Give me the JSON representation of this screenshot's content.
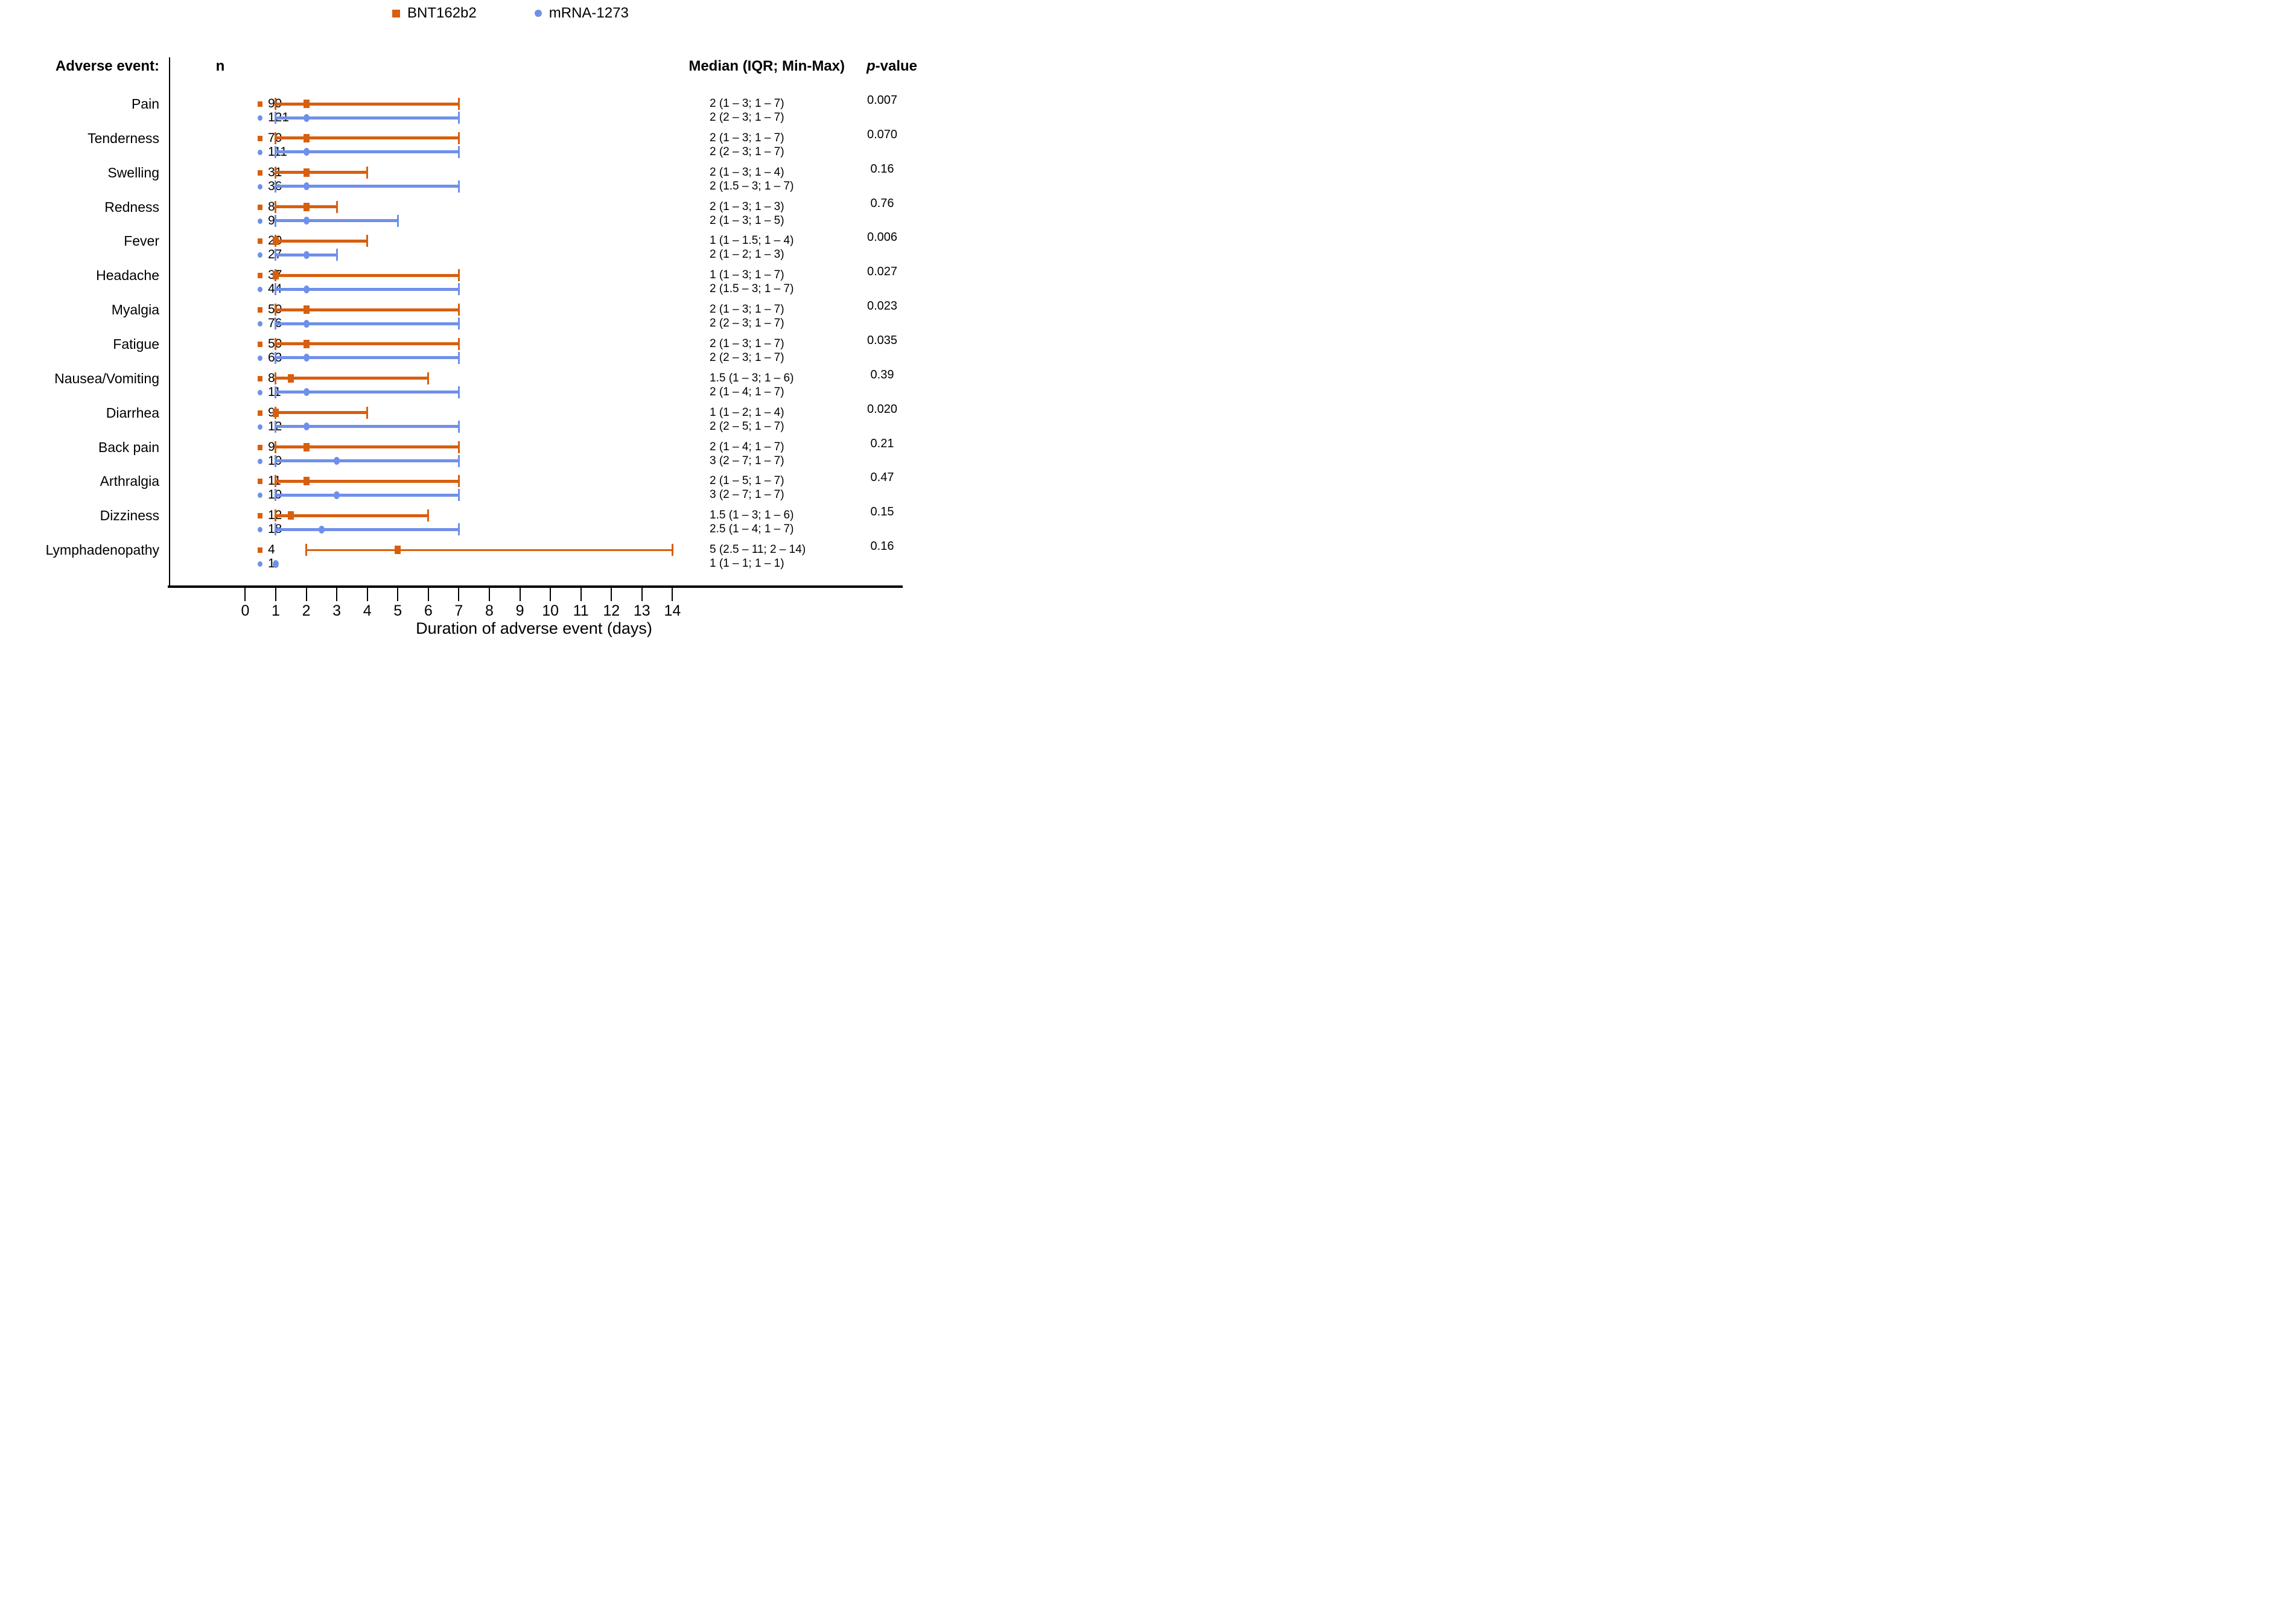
{
  "legend": {
    "items": [
      {
        "label": "BNT162b2",
        "marker": "square-icon",
        "color": "#d85f0e"
      },
      {
        "label": "mRNA-1273",
        "marker": "circle-icon",
        "color": "#6f90ea"
      }
    ]
  },
  "columns": {
    "adverse_event": "Adverse event:",
    "n": "n",
    "median": "Median (IQR; Min-Max)",
    "p_prefix": "p",
    "p_suffix": "-value"
  },
  "chart_data": {
    "type": "scatter",
    "subtype": "forest-plot (median marker with min–max whiskers, two series per category)",
    "xlabel": "Duration of adverse event (days)",
    "xlim": [
      0,
      14
    ],
    "x_ticks": [
      0,
      1,
      2,
      3,
      4,
      5,
      6,
      7,
      8,
      9,
      10,
      11,
      12,
      13,
      14
    ],
    "grid": false,
    "legend_position": "top-center",
    "series_meta": [
      {
        "name": "BNT162b2",
        "color": "#d85f0e",
        "marker": "square"
      },
      {
        "name": "mRNA-1273",
        "color": "#6f90ea",
        "marker": "circle"
      }
    ],
    "categories": [
      "Pain",
      "Tenderness",
      "Swelling",
      "Redness",
      "Fever",
      "Headache",
      "Myalgia",
      "Fatigue",
      "Nausea/Vomiting",
      "Diarrhea",
      "Back pain",
      "Arthralgia",
      "Dizziness",
      "Lymphadenopathy"
    ],
    "rows": [
      {
        "label": "Pain",
        "bnt": {
          "n": 99,
          "min": 1,
          "q1": 1,
          "median": 2,
          "q3": 3,
          "max": 7,
          "text": "2 (1 – 3; 1 – 7)"
        },
        "mrna": {
          "n": 121,
          "min": 1,
          "q1": 2,
          "median": 2,
          "q3": 3,
          "max": 7,
          "text": "2 (2 – 3; 1 – 7)"
        },
        "p": "0.007"
      },
      {
        "label": "Tenderness",
        "bnt": {
          "n": 70,
          "min": 1,
          "q1": 1,
          "median": 2,
          "q3": 3,
          "max": 7,
          "text": "2 (1 – 3; 1 – 7)"
        },
        "mrna": {
          "n": 111,
          "min": 1,
          "q1": 2,
          "median": 2,
          "q3": 3,
          "max": 7,
          "text": "2 (2 – 3; 1 – 7)"
        },
        "p": "0.070"
      },
      {
        "label": "Swelling",
        "bnt": {
          "n": 31,
          "min": 1,
          "q1": 1,
          "median": 2,
          "q3": 3,
          "max": 4,
          "text": "2 (1 – 3; 1 – 4)"
        },
        "mrna": {
          "n": 36,
          "min": 1,
          "q1": 1.5,
          "median": 2,
          "q3": 3,
          "max": 7,
          "text": "2 (1.5 – 3; 1 – 7)"
        },
        "p": "0.16"
      },
      {
        "label": "Redness",
        "bnt": {
          "n": 8,
          "min": 1,
          "q1": 1,
          "median": 2,
          "q3": 3,
          "max": 3,
          "text": "2 (1 – 3; 1 – 3)"
        },
        "mrna": {
          "n": 9,
          "min": 1,
          "q1": 1,
          "median": 2,
          "q3": 3,
          "max": 5,
          "text": "2 (1 – 3; 1 – 5)"
        },
        "p": "0.76"
      },
      {
        "label": "Fever",
        "bnt": {
          "n": 20,
          "min": 1,
          "q1": 1,
          "median": 1,
          "q3": 1.5,
          "max": 4,
          "text": "1 (1 – 1.5; 1 – 4)"
        },
        "mrna": {
          "n": 27,
          "min": 1,
          "q1": 1,
          "median": 2,
          "q3": 2,
          "max": 3,
          "text": "2 (1 – 2; 1 – 3)"
        },
        "p": "0.006"
      },
      {
        "label": "Headache",
        "bnt": {
          "n": 37,
          "min": 1,
          "q1": 1,
          "median": 1,
          "q3": 3,
          "max": 7,
          "text": "1 (1 – 3; 1 – 7)"
        },
        "mrna": {
          "n": 44,
          "min": 1,
          "q1": 1.5,
          "median": 2,
          "q3": 3,
          "max": 7,
          "text": "2 (1.5 – 3; 1 – 7)"
        },
        "p": "0.027"
      },
      {
        "label": "Myalgia",
        "bnt": {
          "n": 50,
          "min": 1,
          "q1": 1,
          "median": 2,
          "q3": 3,
          "max": 7,
          "text": "2 (1 – 3; 1 – 7)"
        },
        "mrna": {
          "n": 76,
          "min": 1,
          "q1": 2,
          "median": 2,
          "q3": 3,
          "max": 7,
          "text": "2 (2 – 3; 1 – 7)"
        },
        "p": "0.023"
      },
      {
        "label": "Fatigue",
        "bnt": {
          "n": 50,
          "min": 1,
          "q1": 1,
          "median": 2,
          "q3": 3,
          "max": 7,
          "text": "2 (1 – 3; 1 – 7)"
        },
        "mrna": {
          "n": 63,
          "min": 1,
          "q1": 2,
          "median": 2,
          "q3": 3,
          "max": 7,
          "text": "2 (2 – 3; 1 – 7)"
        },
        "p": "0.035"
      },
      {
        "label": "Nausea/Vomiting",
        "bnt": {
          "n": 8,
          "min": 1,
          "q1": 1,
          "median": 1.5,
          "q3": 3,
          "max": 6,
          "text": "1.5 (1 – 3; 1 – 6)"
        },
        "mrna": {
          "n": 11,
          "min": 1,
          "q1": 1,
          "median": 2,
          "q3": 4,
          "max": 7,
          "text": "2 (1 – 4; 1 – 7)"
        },
        "p": "0.39"
      },
      {
        "label": "Diarrhea",
        "bnt": {
          "n": 9,
          "min": 1,
          "q1": 1,
          "median": 1,
          "q3": 2,
          "max": 4,
          "text": "1 (1 – 2; 1 – 4)"
        },
        "mrna": {
          "n": 12,
          "min": 1,
          "q1": 2,
          "median": 2,
          "q3": 5,
          "max": 7,
          "text": "2 (2 – 5; 1 – 7)"
        },
        "p": "0.020"
      },
      {
        "label": "Back pain",
        "bnt": {
          "n": 9,
          "min": 1,
          "q1": 1,
          "median": 2,
          "q3": 4,
          "max": 7,
          "text": "2 (1 – 4; 1 – 7)"
        },
        "mrna": {
          "n": 19,
          "min": 1,
          "q1": 2,
          "median": 3,
          "q3": 7,
          "max": 7,
          "text": "3 (2 – 7; 1 – 7)"
        },
        "p": "0.21"
      },
      {
        "label": "Arthralgia",
        "bnt": {
          "n": 11,
          "min": 1,
          "q1": 1,
          "median": 2,
          "q3": 5,
          "max": 7,
          "text": "2 (1 – 5; 1 – 7)"
        },
        "mrna": {
          "n": 19,
          "min": 1,
          "q1": 2,
          "median": 3,
          "q3": 7,
          "max": 7,
          "text": "3 (2 – 7; 1 – 7)"
        },
        "p": "0.47"
      },
      {
        "label": "Dizziness",
        "bnt": {
          "n": 12,
          "min": 1,
          "q1": 1,
          "median": 1.5,
          "q3": 3,
          "max": 6,
          "text": "1.5 (1 – 3; 1 – 6)"
        },
        "mrna": {
          "n": 18,
          "min": 1,
          "q1": 1,
          "median": 2.5,
          "q3": 4,
          "max": 7,
          "text": "2.5 (1 – 4; 1 – 7)"
        },
        "p": "0.15"
      },
      {
        "label": "Lymphadenopathy",
        "bnt": {
          "n": 4,
          "min": 2,
          "q1": 2.5,
          "median": 5,
          "q3": 11,
          "max": 14,
          "text": "5 (2.5 – 11; 2 – 14)"
        },
        "mrna": {
          "n": 1,
          "min": 1,
          "q1": 1,
          "median": 1,
          "q3": 1,
          "max": 1,
          "text": "1 (1 – 1; 1 – 1)"
        },
        "p": "0.16"
      }
    ]
  }
}
